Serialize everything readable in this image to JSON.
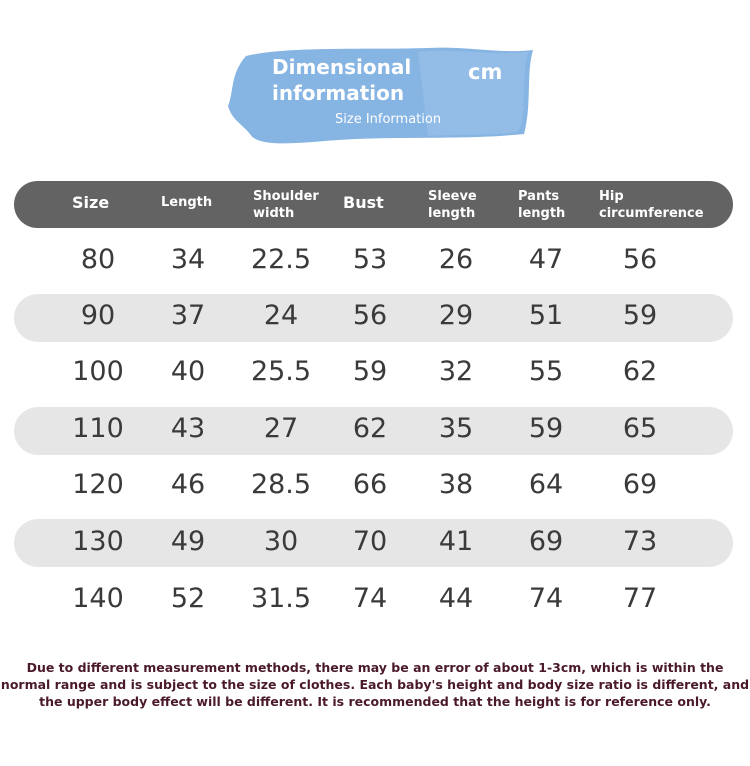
{
  "banner": {
    "title": "Dimensional information",
    "unit": "cm",
    "subtitle": "Size Information",
    "color": "#86b4e3"
  },
  "table": {
    "header_color": "#636363",
    "stripe_color": "#e6e6e6",
    "headers": {
      "size": "Size",
      "length": "Length",
      "shoulder_width": "Shoulder width",
      "bust": "Bust",
      "sleeve_length": "Sleeve length",
      "pants_length": "Pants length",
      "hip_circumference": "Hip circumference"
    },
    "rows": [
      [
        "80",
        "34",
        "22.5",
        "53",
        "26",
        "47",
        "56"
      ],
      [
        "90",
        "37",
        "24",
        "56",
        "29",
        "51",
        "59"
      ],
      [
        "100",
        "40",
        "25.5",
        "59",
        "32",
        "55",
        "62"
      ],
      [
        "110",
        "43",
        "27",
        "62",
        "35",
        "59",
        "65"
      ],
      [
        "120",
        "46",
        "28.5",
        "66",
        "38",
        "64",
        "69"
      ],
      [
        "130",
        "49",
        "30",
        "70",
        "41",
        "69",
        "73"
      ],
      [
        "140",
        "52",
        "31.5",
        "74",
        "44",
        "74",
        "77"
      ]
    ]
  },
  "note": "Due to different measurement methods, there may be an error of about 1-3cm, which is within the normal range and is subject to the size of clothes. Each baby's height and body size ratio is different, and the upper body effect will be different. It is recommended that the height is for reference only."
}
